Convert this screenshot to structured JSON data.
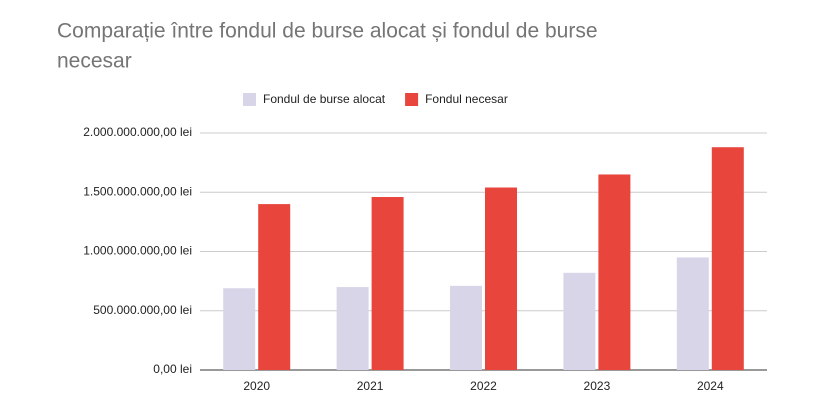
{
  "chart_data": {
    "type": "bar",
    "title": [
      "Comparație între fondul de burse alocat și fondul de burse",
      "necesar"
    ],
    "categories": [
      "2020",
      "2021",
      "2022",
      "2023",
      "2024"
    ],
    "series": [
      {
        "name": "Fondul de burse alocat",
        "color": "#d9d5e9",
        "values": [
          690000000,
          700000000,
          710000000,
          820000000,
          950000000
        ]
      },
      {
        "name": "Fondul necesar",
        "color": "#e8453c",
        "values": [
          1400000000,
          1460000000,
          1540000000,
          1650000000,
          1880000000
        ]
      }
    ],
    "ylim": [
      0,
      2000000000
    ],
    "yticks": [
      {
        "value": 0,
        "label": "0,00 lei"
      },
      {
        "value": 500000000,
        "label": "500.000.000,00 lei"
      },
      {
        "value": 1000000000,
        "label": "1.000.000.000,00 lei"
      },
      {
        "value": 1500000000,
        "label": "1.500.000.000,00 lei"
      },
      {
        "value": 2000000000,
        "label": "2.000.000.000,00 lei"
      }
    ],
    "grid": true
  }
}
